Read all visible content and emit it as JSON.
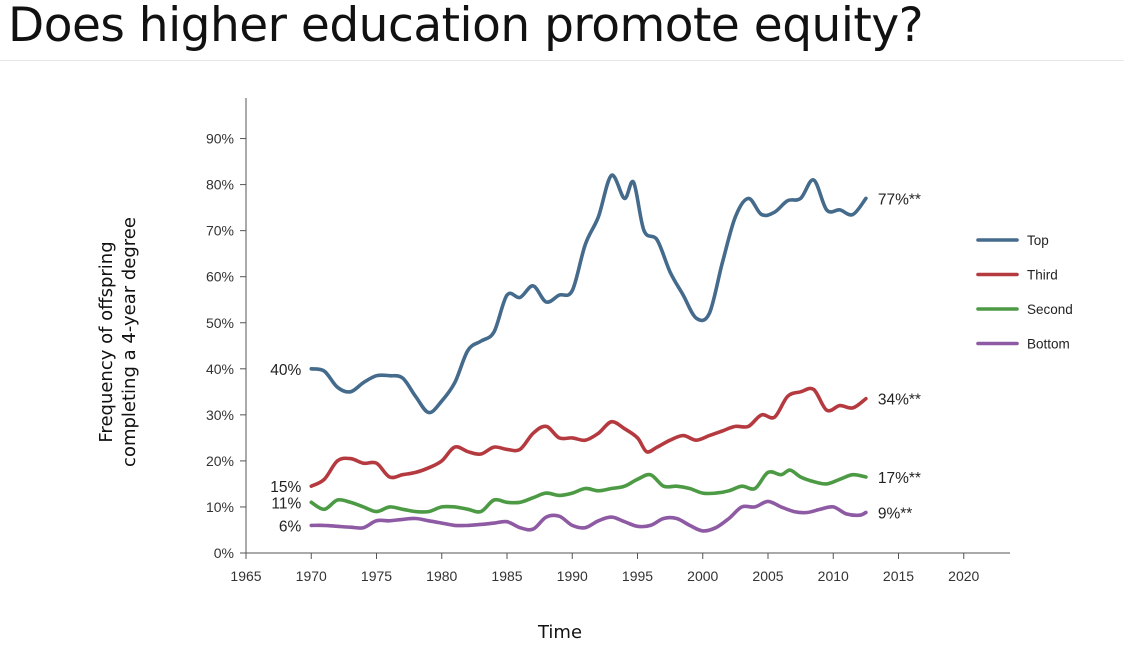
{
  "slide": {
    "title": "Does higher education promote equity?"
  },
  "chart_data": {
    "type": "line",
    "title": "",
    "xlabel": "Time",
    "ylabel": "Frequency of offspring completing a 4-year degree",
    "xlim": [
      1965,
      2020
    ],
    "ylim": [
      0,
      90
    ],
    "x_ticks": [
      "1965",
      "1970",
      "1975",
      "1980",
      "1985",
      "1990",
      "1995",
      "2000",
      "2005",
      "2010",
      "2015",
      "2020"
    ],
    "y_ticks": [
      "0%",
      "10%",
      "20%",
      "30%",
      "40%",
      "50%",
      "60%",
      "70%",
      "80%",
      "90%"
    ],
    "grid": false,
    "legend_position": "right",
    "series": [
      {
        "name": "Top",
        "color": "#446a8c",
        "start_label": "40%",
        "end_label": "77%**",
        "points": [
          [
            1970,
            40
          ],
          [
            1971,
            39.5
          ],
          [
            1972,
            36
          ],
          [
            1973,
            35
          ],
          [
            1974,
            37
          ],
          [
            1975,
            38.5
          ],
          [
            1976,
            38.5
          ],
          [
            1977,
            38
          ],
          [
            1978,
            34
          ],
          [
            1979,
            30.5
          ],
          [
            1980,
            33
          ],
          [
            1981,
            37
          ],
          [
            1982,
            44
          ],
          [
            1983,
            46
          ],
          [
            1984,
            48
          ],
          [
            1985,
            56
          ],
          [
            1986,
            55.5
          ],
          [
            1987,
            58
          ],
          [
            1988,
            54.5
          ],
          [
            1989,
            56
          ],
          [
            1990,
            57
          ],
          [
            1991,
            67
          ],
          [
            1992,
            73
          ],
          [
            1993,
            82
          ],
          [
            1994,
            77
          ],
          [
            1994.7,
            80.5
          ],
          [
            1995.5,
            70
          ],
          [
            1996.5,
            68
          ],
          [
            1997.5,
            61
          ],
          [
            1998.5,
            56
          ],
          [
            1999.5,
            51
          ],
          [
            2000.5,
            52
          ],
          [
            2001.5,
            63
          ],
          [
            2002.5,
            73
          ],
          [
            2003.5,
            77
          ],
          [
            2004.5,
            73.5
          ],
          [
            2005.5,
            74
          ],
          [
            2006.5,
            76.5
          ],
          [
            2007.5,
            77
          ],
          [
            2008.5,
            81
          ],
          [
            2009.5,
            74.5
          ],
          [
            2010.5,
            74.5
          ],
          [
            2011.5,
            73.5
          ],
          [
            2012.5,
            77
          ]
        ]
      },
      {
        "name": "Third",
        "color": "#b53a3f",
        "start_label": "15%",
        "end_label": "34%**",
        "points": [
          [
            1970,
            14.5
          ],
          [
            1971,
            16
          ],
          [
            1972,
            20
          ],
          [
            1973,
            20.5
          ],
          [
            1974,
            19.5
          ],
          [
            1975,
            19.5
          ],
          [
            1976,
            16.5
          ],
          [
            1977,
            17
          ],
          [
            1978,
            17.5
          ],
          [
            1979,
            18.5
          ],
          [
            1980,
            20
          ],
          [
            1981,
            23
          ],
          [
            1982,
            22
          ],
          [
            1983,
            21.5
          ],
          [
            1984,
            23
          ],
          [
            1985,
            22.5
          ],
          [
            1986,
            22.5
          ],
          [
            1987,
            26
          ],
          [
            1988,
            27.5
          ],
          [
            1989,
            25
          ],
          [
            1990,
            25
          ],
          [
            1991,
            24.5
          ],
          [
            1992,
            26
          ],
          [
            1993,
            28.5
          ],
          [
            1994,
            27
          ],
          [
            1995,
            25
          ],
          [
            1995.7,
            22
          ],
          [
            1996.5,
            23
          ],
          [
            1997.5,
            24.5
          ],
          [
            1998.5,
            25.5
          ],
          [
            1999.5,
            24.5
          ],
          [
            2000.5,
            25.5
          ],
          [
            2001.5,
            26.5
          ],
          [
            2002.5,
            27.5
          ],
          [
            2003.5,
            27.5
          ],
          [
            2004.5,
            30
          ],
          [
            2005.5,
            29.5
          ],
          [
            2006.5,
            34
          ],
          [
            2007.5,
            35
          ],
          [
            2008.5,
            35.5
          ],
          [
            2009.5,
            31
          ],
          [
            2010.5,
            32
          ],
          [
            2011.5,
            31.5
          ],
          [
            2012.5,
            33.5
          ]
        ]
      },
      {
        "name": "Second",
        "color": "#4d9a45",
        "start_label": "11%",
        "end_label": "17%**",
        "points": [
          [
            1970,
            11
          ],
          [
            1971,
            9.5
          ],
          [
            1972,
            11.5
          ],
          [
            1973,
            11
          ],
          [
            1974,
            10
          ],
          [
            1975,
            9
          ],
          [
            1976,
            10
          ],
          [
            1977,
            9.5
          ],
          [
            1978,
            9
          ],
          [
            1979,
            9
          ],
          [
            1980,
            10
          ],
          [
            1981,
            10
          ],
          [
            1982,
            9.5
          ],
          [
            1983,
            9
          ],
          [
            1984,
            11.5
          ],
          [
            1985,
            11
          ],
          [
            1986,
            11
          ],
          [
            1987,
            12
          ],
          [
            1988,
            13
          ],
          [
            1989,
            12.5
          ],
          [
            1990,
            13
          ],
          [
            1991,
            14
          ],
          [
            1992,
            13.5
          ],
          [
            1993,
            14
          ],
          [
            1994,
            14.5
          ],
          [
            1995,
            16
          ],
          [
            1996,
            17
          ],
          [
            1997,
            14.5
          ],
          [
            1998,
            14.5
          ],
          [
            1999,
            14
          ],
          [
            2000,
            13
          ],
          [
            2001,
            13
          ],
          [
            2002,
            13.5
          ],
          [
            2003,
            14.5
          ],
          [
            2004,
            14
          ],
          [
            2005,
            17.5
          ],
          [
            2006,
            17
          ],
          [
            2006.7,
            18
          ],
          [
            2007.5,
            16.5
          ],
          [
            2008.5,
            15.5
          ],
          [
            2009.5,
            15
          ],
          [
            2010.5,
            16
          ],
          [
            2011.5,
            17
          ],
          [
            2012.5,
            16.5
          ]
        ]
      },
      {
        "name": "Bottom",
        "color": "#8e5aa3",
        "start_label": "6%",
        "end_label": "9%**",
        "points": [
          [
            1970,
            6
          ],
          [
            1971,
            6
          ],
          [
            1972,
            5.8
          ],
          [
            1973,
            5.6
          ],
          [
            1974,
            5.5
          ],
          [
            1975,
            7
          ],
          [
            1976,
            7
          ],
          [
            1977,
            7.3
          ],
          [
            1978,
            7.5
          ],
          [
            1979,
            7
          ],
          [
            1980,
            6.5
          ],
          [
            1981,
            6
          ],
          [
            1982,
            6
          ],
          [
            1983,
            6.2
          ],
          [
            1984,
            6.5
          ],
          [
            1985,
            6.8
          ],
          [
            1986,
            5.5
          ],
          [
            1987,
            5.2
          ],
          [
            1988,
            7.8
          ],
          [
            1989,
            8
          ],
          [
            1990,
            6
          ],
          [
            1991,
            5.5
          ],
          [
            1992,
            7
          ],
          [
            1993,
            7.8
          ],
          [
            1994,
            6.8
          ],
          [
            1995,
            5.8
          ],
          [
            1996,
            6
          ],
          [
            1997,
            7.5
          ],
          [
            1998,
            7.5
          ],
          [
            1999,
            6
          ],
          [
            2000,
            4.8
          ],
          [
            2001,
            5.5
          ],
          [
            2002,
            7.5
          ],
          [
            2003,
            10
          ],
          [
            2004,
            10
          ],
          [
            2005,
            11.2
          ],
          [
            2006,
            10
          ],
          [
            2007,
            9
          ],
          [
            2008,
            8.8
          ],
          [
            2009,
            9.5
          ],
          [
            2010,
            10
          ],
          [
            2011,
            8.5
          ],
          [
            2012,
            8.2
          ],
          [
            2012.5,
            8.8
          ]
        ]
      }
    ]
  }
}
